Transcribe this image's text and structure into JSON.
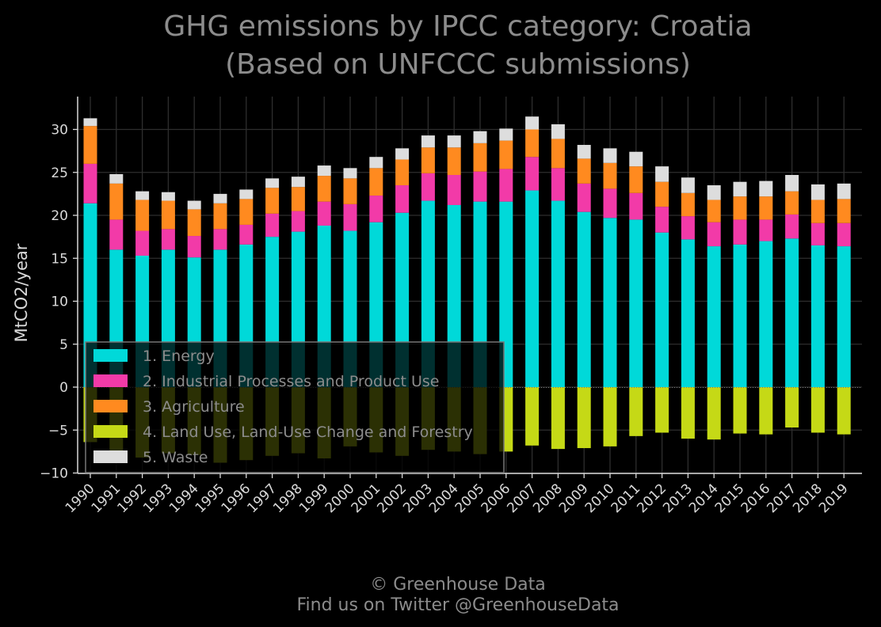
{
  "chart_data": {
    "type": "bar",
    "stacked": true,
    "title_line1": "GHG emissions by IPCC category: Croatia",
    "title_line2": "(Based on UNFCCC submissions)",
    "ylabel": "MtCO2/year",
    "xlabel": "",
    "ylim": [
      -10,
      33
    ],
    "yticks": [
      -10,
      -5,
      0,
      5,
      10,
      15,
      20,
      25,
      30
    ],
    "ytick_labels": [
      "−10",
      "−5",
      "0",
      "5",
      "10",
      "15",
      "20",
      "25",
      "30"
    ],
    "grid": true,
    "legend_position": "lower-left",
    "categories": [
      "1990",
      "1991",
      "1992",
      "1993",
      "1994",
      "1995",
      "1996",
      "1997",
      "1998",
      "1999",
      "2000",
      "2001",
      "2002",
      "2003",
      "2004",
      "2005",
      "2006",
      "2007",
      "2008",
      "2009",
      "2010",
      "2011",
      "2012",
      "2013",
      "2014",
      "2015",
      "2016",
      "2017",
      "2018",
      "2019"
    ],
    "series": [
      {
        "name": "1. Energy",
        "color": "#00d9d9",
        "values": [
          21.4,
          16.0,
          15.3,
          16.0,
          15.1,
          16.0,
          16.6,
          17.5,
          18.1,
          18.8,
          18.2,
          19.2,
          20.3,
          21.7,
          21.2,
          21.6,
          21.6,
          22.9,
          21.7,
          20.4,
          19.7,
          19.5,
          18.0,
          17.2,
          16.4,
          16.6,
          17.0,
          17.3,
          16.5,
          16.4
        ]
      },
      {
        "name": "2. Industrial Processes and Product Use",
        "color": "#f23aa8",
        "values": [
          4.6,
          3.5,
          2.9,
          2.4,
          2.5,
          2.4,
          2.3,
          2.7,
          2.4,
          2.8,
          3.1,
          3.1,
          3.2,
          3.2,
          3.5,
          3.5,
          3.8,
          3.9,
          3.8,
          3.3,
          3.4,
          3.1,
          3.0,
          2.7,
          2.8,
          2.9,
          2.5,
          2.8,
          2.6,
          2.7
        ]
      },
      {
        "name": "3. Agriculture",
        "color": "#ff8a1f",
        "values": [
          4.4,
          4.2,
          3.6,
          3.3,
          3.1,
          3.0,
          3.0,
          3.0,
          2.8,
          3.0,
          3.0,
          3.2,
          3.0,
          3.0,
          3.2,
          3.3,
          3.3,
          3.2,
          3.4,
          2.9,
          3.0,
          3.1,
          2.9,
          2.7,
          2.6,
          2.7,
          2.7,
          2.7,
          2.7,
          2.8
        ]
      },
      {
        "name": "4. Land Use, Land-Use Change and Forestry",
        "color": "#c5d916",
        "values": [
          -6.4,
          -7.4,
          -8.2,
          -7.7,
          -7.9,
          -8.8,
          -8.5,
          -8.0,
          -7.7,
          -8.3,
          -6.9,
          -7.6,
          -8.0,
          -7.3,
          -7.5,
          -7.8,
          -7.5,
          -6.8,
          -7.2,
          -7.1,
          -6.9,
          -5.7,
          -5.3,
          -6.0,
          -6.1,
          -5.4,
          -5.5,
          -4.7,
          -5.3,
          -5.5
        ]
      },
      {
        "name": "5. Waste",
        "color": "#dddddd",
        "values": [
          0.9,
          1.1,
          1.0,
          1.0,
          1.0,
          1.1,
          1.1,
          1.1,
          1.2,
          1.2,
          1.2,
          1.3,
          1.3,
          1.4,
          1.4,
          1.4,
          1.4,
          1.5,
          1.7,
          1.6,
          1.7,
          1.7,
          1.8,
          1.8,
          1.7,
          1.7,
          1.8,
          1.9,
          1.8,
          1.8
        ]
      }
    ],
    "credit_line1": "© Greenhouse Data",
    "credit_line2": "Find us on Twitter @GreenhouseData"
  }
}
